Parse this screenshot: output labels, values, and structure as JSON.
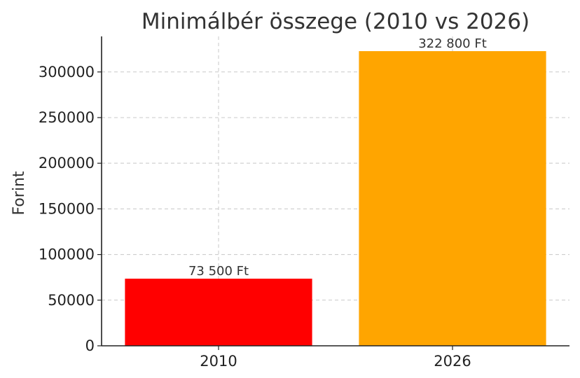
{
  "chart_data": {
    "type": "bar",
    "title": "Minimálbér összege (2010 vs 2026)",
    "xlabel": "",
    "ylabel": "Forint",
    "categories": [
      "2010",
      "2026"
    ],
    "values": [
      73500,
      322800
    ],
    "value_labels": [
      "73 500 Ft",
      "322 800 Ft"
    ],
    "colors": [
      "#ff0000",
      "#ffa500"
    ],
    "ylim": [
      0,
      338940
    ],
    "yticks": [
      0,
      50000,
      100000,
      150000,
      200000,
      250000,
      300000
    ],
    "grid": true
  }
}
